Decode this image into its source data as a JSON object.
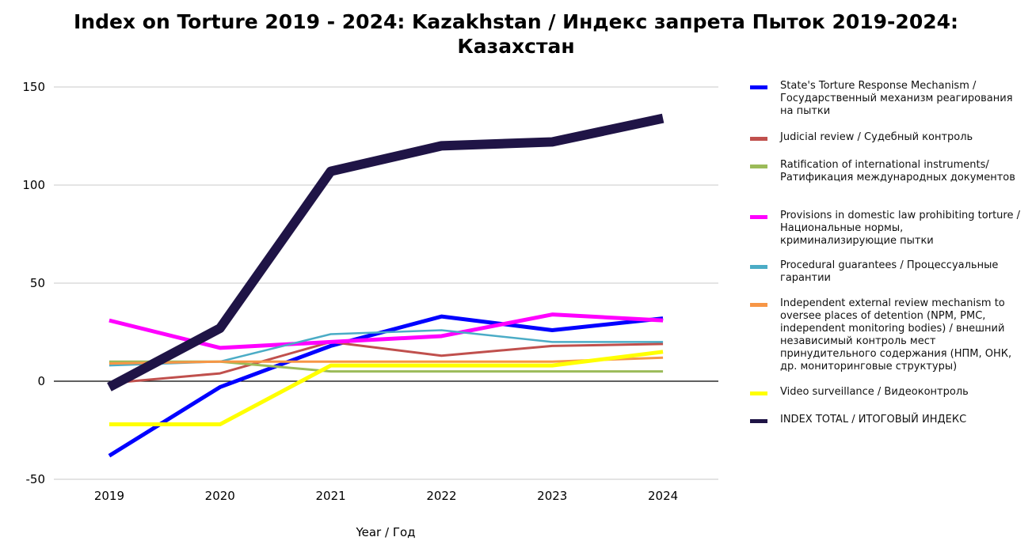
{
  "chart_data": {
    "type": "line",
    "title_line1": "Index on Torture 2019 - 2024: Kazakhstan / Индекс запрета Пыток 2019-2024:",
    "title_line2": "Казахстан",
    "xlabel": "Year / Год",
    "ylabel": "",
    "categories": [
      "2019",
      "2020",
      "2021",
      "2022",
      "2023",
      "2024"
    ],
    "y_ticks": [
      "150",
      "100",
      "50",
      "0",
      "-50"
    ],
    "ylim": [
      -50,
      150
    ],
    "grid": true,
    "legend_position": "right",
    "series": [
      {
        "name": "State's Torture Response Mechanism / Государственный механизм реагирования на пытки",
        "color": "#0000ff",
        "values": [
          -38,
          -3,
          18,
          33,
          26,
          32
        ]
      },
      {
        "name": "Judicial review / Судебный контроль",
        "color": "#c0504d",
        "values": [
          -1,
          4,
          20,
          13,
          18,
          19
        ]
      },
      {
        "name": "Ratification of international instruments/ Ратификация международных документов",
        "color": "#9bbb59",
        "values": [
          10,
          10,
          5,
          5,
          5,
          5
        ]
      },
      {
        "name": "Provisions in domestic law prohibiting torture / Национальные нормы, криминализирующие пытки",
        "color": "#ff00ff",
        "values": [
          31,
          17,
          20,
          23,
          34,
          31
        ]
      },
      {
        "name": "Procedural guarantees / Процессуальные гарантии",
        "color": "#4bacc6",
        "values": [
          8,
          10,
          24,
          26,
          20,
          20
        ]
      },
      {
        "name": "Independent external review mechanism to oversee places of detention (NPM, PMC, independent monitoring bodies) / внешний независимый контроль мест принудительного содержания (НПМ, ОНК, др. мониторинговые структуры)",
        "color": "#f79646",
        "values": [
          9,
          10,
          10,
          10,
          10,
          12
        ]
      },
      {
        "name": "Video surveillance / Видеоконтроль",
        "color": "#ffff00",
        "values": [
          -22,
          -22,
          8,
          8,
          8,
          15
        ]
      },
      {
        "name": "INDEX TOTAL /  ИТОГОВЫЙ ИНДЕКС",
        "color": "#1f1446",
        "values": [
          -3,
          27,
          107,
          120,
          122,
          134
        ]
      }
    ]
  }
}
